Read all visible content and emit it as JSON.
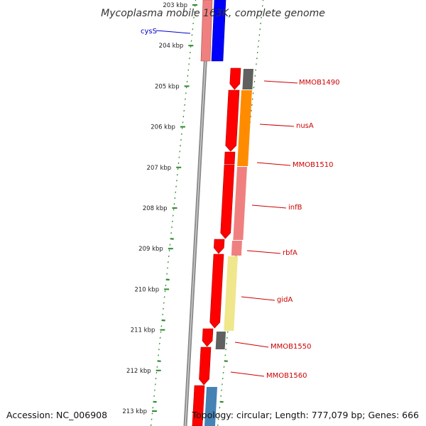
{
  "title": "Mycoplasma mobile 163K, complete genome",
  "accession": "Accession: NC_006908",
  "topology": "Topology: circular; Length: 777,079 bp; Genes: 666",
  "ticks": [
    "203 kbp",
    "204 kbp",
    "205 kbp",
    "206 kbp",
    "207 kbp",
    "208 kbp",
    "209 kbp",
    "210 kbp",
    "211 kbp",
    "212 kbp",
    "213 kbp"
  ],
  "colors": {
    "backbone": "#8c8c8c",
    "cds_forward": "#ff0000",
    "cds_reverse": "#0000ff",
    "tick": "#2e8b2e",
    "label_red": "#cc0000",
    "label_blue": "#0000cc"
  },
  "genes": [
    {
      "name": "cysS",
      "color": "#0000cc"
    },
    {
      "name": "MMOB1490",
      "color": "#cc0000"
    },
    {
      "name": "nusA",
      "color": "#cc0000"
    },
    {
      "name": "MMOB1510",
      "color": "#cc0000"
    },
    {
      "name": "infB",
      "color": "#cc0000"
    },
    {
      "name": "rbfA",
      "color": "#cc0000"
    },
    {
      "name": "gidA",
      "color": "#cc0000"
    },
    {
      "name": "MMOB1550",
      "color": "#cc0000"
    },
    {
      "name": "MMOB1560",
      "color": "#cc0000"
    }
  ],
  "analysis_colors": [
    "#f08080",
    "#606060",
    "#ff8c00",
    "#f08080",
    "#f08080",
    "#f0e68c",
    "#606060",
    "#4682b4"
  ]
}
